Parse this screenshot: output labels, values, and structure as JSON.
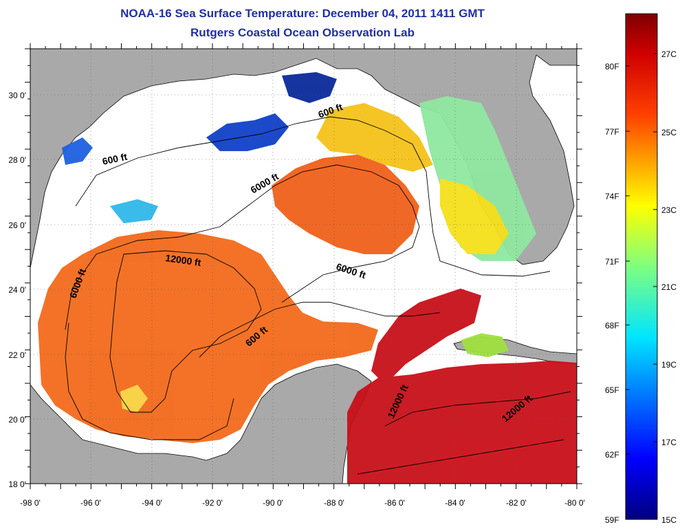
{
  "title": {
    "line1": "NOAA-16 Sea Surface Temperature:  December 04, 2011 1411 GMT",
    "line2": "Rutgers Coastal Ocean Observation Lab"
  },
  "map": {
    "lon_range": [
      -98,
      -80
    ],
    "lat_range": [
      18,
      31
    ],
    "lon_ticks": [
      "-98 0'",
      "-96 0'",
      "-94 0'",
      "-92 0'",
      "-90 0'",
      "-88 0'",
      "-86 0'",
      "-84 0'",
      "-82 0'",
      "-80 0'"
    ],
    "lat_ticks": [
      "18 0'",
      "20 0'",
      "22 0'",
      "24 0'",
      "26 0'",
      "28 0'",
      "30 0'"
    ],
    "contour_labels": [
      "600 ft",
      "600 ft",
      "6000 ft",
      "12000 ft",
      "6000 ft",
      "6000 ft",
      "600 ft",
      "12000 ft",
      "12000 ft"
    ],
    "colors": {
      "land": "#a9a9a9",
      "no_data": "#ffffff",
      "warm": "#f26a1b",
      "hot": "#c8101a",
      "cool": "#1040c8"
    }
  },
  "colorbar": {
    "fahrenheit": [
      "80F",
      "77F",
      "74F",
      "71F",
      "68F",
      "65F",
      "62F",
      "59F"
    ],
    "celsius": [
      "27C",
      "25C",
      "23C",
      "21C",
      "19C",
      "17C",
      "15C"
    ],
    "range_c": [
      15,
      28
    ]
  }
}
